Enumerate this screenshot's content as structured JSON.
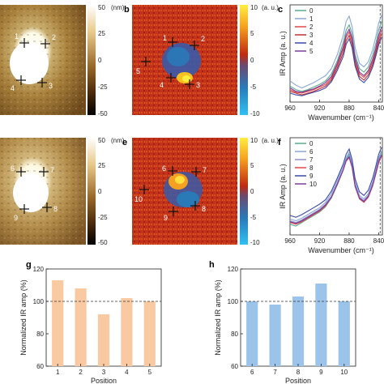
{
  "panel_labels": [
    "b",
    "c",
    "e",
    "f",
    "g",
    "h"
  ],
  "afm_colorbar": {
    "unit": "(nm)",
    "ticks": [
      "50",
      "25",
      "0",
      "-25",
      "-50"
    ]
  },
  "ir_colorbar": {
    "unit": "(a. u.)",
    "ticks": [
      "10",
      "5",
      "0",
      "-5",
      "-10"
    ]
  },
  "map_markers": {
    "top": [
      "1",
      "2",
      "3",
      "4",
      "5"
    ],
    "bottom": [
      "6",
      "7",
      "8",
      "9",
      "10"
    ]
  },
  "chart_data": [
    {
      "panel": "c",
      "type": "line",
      "xlabel": "Wavenumber (cm⁻¹)",
      "ylabel": "IR Amp (a. u.)",
      "x_ticks": [
        "960",
        "920",
        "880",
        "840"
      ],
      "xlim": [
        960,
        835
      ],
      "x": [
        960,
        952,
        944,
        936,
        928,
        920,
        912,
        904,
        896,
        888,
        884,
        880,
        876,
        872,
        866,
        860,
        854,
        848,
        844,
        840,
        836
      ],
      "legend": [
        "0",
        "1",
        "2",
        "3",
        "4",
        "5"
      ],
      "colors": [
        "#5aaa8a",
        "#8aa6d6",
        "#e04545",
        "#c03030",
        "#3a4aa8",
        "#7a3aa0"
      ],
      "series": [
        {
          "name": "0",
          "values": [
            0.16,
            0.12,
            0.1,
            0.12,
            0.15,
            0.18,
            0.22,
            0.3,
            0.45,
            0.66,
            0.8,
            0.86,
            0.76,
            0.52,
            0.36,
            0.32,
            0.38,
            0.52,
            0.64,
            0.8,
            0.9
          ]
        },
        {
          "name": "1",
          "values": [
            0.22,
            0.17,
            0.14,
            0.17,
            0.2,
            0.24,
            0.28,
            0.36,
            0.52,
            0.74,
            0.9,
            0.96,
            0.84,
            0.6,
            0.42,
            0.38,
            0.44,
            0.58,
            0.72,
            0.88,
            0.97
          ]
        },
        {
          "name": "2",
          "values": [
            0.12,
            0.09,
            0.08,
            0.1,
            0.12,
            0.15,
            0.18,
            0.25,
            0.4,
            0.58,
            0.72,
            0.78,
            0.68,
            0.46,
            0.3,
            0.26,
            0.32,
            0.44,
            0.56,
            0.7,
            0.8
          ]
        },
        {
          "name": "3",
          "values": [
            0.1,
            0.08,
            0.06,
            0.08,
            0.1,
            0.13,
            0.16,
            0.23,
            0.37,
            0.54,
            0.68,
            0.74,
            0.64,
            0.42,
            0.27,
            0.23,
            0.29,
            0.41,
            0.53,
            0.66,
            0.76
          ]
        },
        {
          "name": "4",
          "values": [
            0.08,
            0.06,
            0.05,
            0.07,
            0.09,
            0.11,
            0.14,
            0.21,
            0.34,
            0.5,
            0.64,
            0.7,
            0.6,
            0.39,
            0.24,
            0.2,
            0.26,
            0.38,
            0.5,
            0.63,
            0.72
          ]
        },
        {
          "name": "5",
          "values": [
            0.14,
            0.1,
            0.09,
            0.11,
            0.13,
            0.16,
            0.2,
            0.27,
            0.42,
            0.61,
            0.75,
            0.81,
            0.71,
            0.48,
            0.32,
            0.28,
            0.34,
            0.47,
            0.59,
            0.74,
            0.84
          ]
        }
      ]
    },
    {
      "panel": "f",
      "type": "line",
      "xlabel": "Wavenumber (cm⁻¹)",
      "ylabel": "IR Amp (a. u.)",
      "x_ticks": [
        "960",
        "920",
        "880",
        "840"
      ],
      "xlim": [
        960,
        835
      ],
      "x": [
        960,
        952,
        944,
        936,
        928,
        920,
        912,
        904,
        896,
        888,
        884,
        880,
        876,
        872,
        866,
        860,
        854,
        848,
        844,
        840,
        836
      ],
      "legend": [
        "0",
        "6",
        "7",
        "8",
        "9",
        "10"
      ],
      "colors": [
        "#5aaa8a",
        "#8aa6d6",
        "#9090c8",
        "#e04545",
        "#3a4aa8",
        "#7a3aa0"
      ],
      "series": [
        {
          "name": "0",
          "values": [
            0.1,
            0.08,
            0.12,
            0.16,
            0.2,
            0.24,
            0.3,
            0.4,
            0.55,
            0.72,
            0.84,
            0.9,
            0.78,
            0.55,
            0.4,
            0.36,
            0.42,
            0.56,
            0.7,
            0.84,
            0.92
          ]
        },
        {
          "name": "6",
          "values": [
            0.16,
            0.14,
            0.17,
            0.21,
            0.25,
            0.29,
            0.35,
            0.45,
            0.6,
            0.76,
            0.86,
            0.92,
            0.8,
            0.58,
            0.43,
            0.39,
            0.45,
            0.59,
            0.72,
            0.86,
            0.94
          ]
        },
        {
          "name": "7",
          "values": [
            0.14,
            0.12,
            0.15,
            0.19,
            0.23,
            0.27,
            0.33,
            0.42,
            0.57,
            0.73,
            0.83,
            0.88,
            0.77,
            0.55,
            0.41,
            0.37,
            0.43,
            0.56,
            0.69,
            0.83,
            0.9
          ]
        },
        {
          "name": "8",
          "values": [
            0.12,
            0.1,
            0.13,
            0.17,
            0.21,
            0.25,
            0.31,
            0.41,
            0.56,
            0.72,
            0.82,
            0.86,
            0.75,
            0.53,
            0.39,
            0.35,
            0.41,
            0.54,
            0.67,
            0.8,
            0.88
          ]
        },
        {
          "name": "9",
          "values": [
            0.2,
            0.18,
            0.21,
            0.25,
            0.29,
            0.33,
            0.38,
            0.48,
            0.63,
            0.79,
            0.9,
            0.96,
            0.84,
            0.62,
            0.47,
            0.43,
            0.49,
            0.63,
            0.76,
            0.9,
            0.98
          ]
        },
        {
          "name": "10",
          "values": [
            0.13,
            0.11,
            0.14,
            0.18,
            0.22,
            0.26,
            0.32,
            0.41,
            0.56,
            0.72,
            0.83,
            0.87,
            0.76,
            0.54,
            0.4,
            0.36,
            0.42,
            0.55,
            0.68,
            0.82,
            0.89
          ]
        }
      ]
    },
    {
      "panel": "g",
      "type": "bar",
      "categories": [
        "1",
        "2",
        "3",
        "4",
        "5"
      ],
      "values": [
        113,
        108,
        92,
        102,
        100
      ],
      "reference_line": 100,
      "xlabel": "Position",
      "ylabel": "Normalized IR amp (%)",
      "ylim": [
        60,
        120
      ],
      "y_ticks": [
        "120",
        "100",
        "80",
        "60"
      ],
      "color": "#f9c9a2"
    },
    {
      "panel": "h",
      "type": "bar",
      "categories": [
        "6",
        "7",
        "8",
        "9",
        "10"
      ],
      "values": [
        100,
        98,
        103,
        111,
        100
      ],
      "reference_line": 100,
      "xlabel": "Position",
      "ylabel": "Normalized IR amp (%)",
      "ylim": [
        60,
        120
      ],
      "y_ticks": [
        "120",
        "100",
        "80",
        "60"
      ],
      "color": "#9cc4ea"
    }
  ]
}
